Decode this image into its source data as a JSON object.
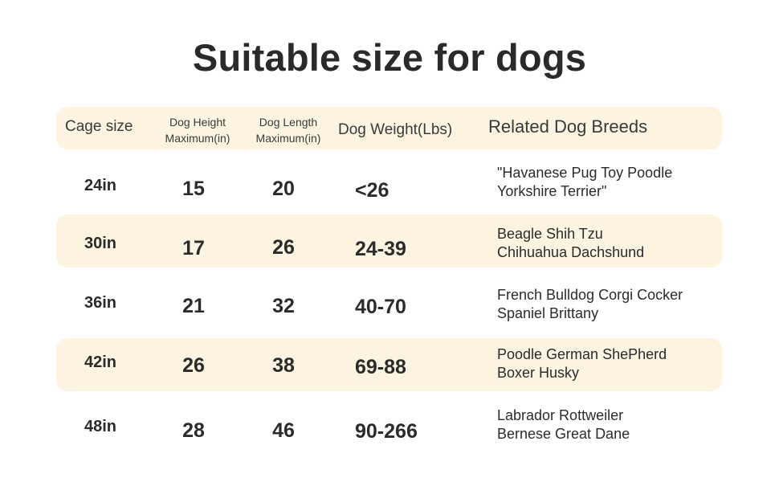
{
  "title": "Suitable size for dogs",
  "colors": {
    "band": "#fdf3e1",
    "text": "#2b2b2b"
  },
  "table": {
    "headers": {
      "cage_size": "Cage size",
      "dog_height_line1": "Dog Height",
      "dog_height_line2": "Maximum(in)",
      "dog_length_line1": "Dog Length",
      "dog_length_line2": "Maximum(in)",
      "dog_weight": "Dog Weight(Lbs)",
      "related_breeds": "Related Dog Breeds"
    },
    "rows": [
      {
        "cage": "24in",
        "height": "15",
        "length": "20",
        "weight": "<26",
        "breeds_line1": "\"Havanese Pug Toy Poodle",
        "breeds_line2": "Yorkshire Terrier\""
      },
      {
        "cage": "30in",
        "height": "17",
        "length": "26",
        "weight": "24-39",
        "breeds_line1": "Beagle Shih Tzu",
        "breeds_line2": "Chihuahua Dachshund"
      },
      {
        "cage": "36in",
        "height": "21",
        "length": "32",
        "weight": "40-70",
        "breeds_line1": "French Bulldog Corgi Cocker",
        "breeds_line2": "Spaniel Brittany"
      },
      {
        "cage": "42in",
        "height": "26",
        "length": "38",
        "weight": "69-88",
        "breeds_line1": "Poodle German ShePherd",
        "breeds_line2": "Boxer Husky"
      },
      {
        "cage": "48in",
        "height": "28",
        "length": "46",
        "weight": "90-266",
        "breeds_line1": "Labrador Rottweiler",
        "breeds_line2": "Bernese Great Dane"
      }
    ]
  }
}
